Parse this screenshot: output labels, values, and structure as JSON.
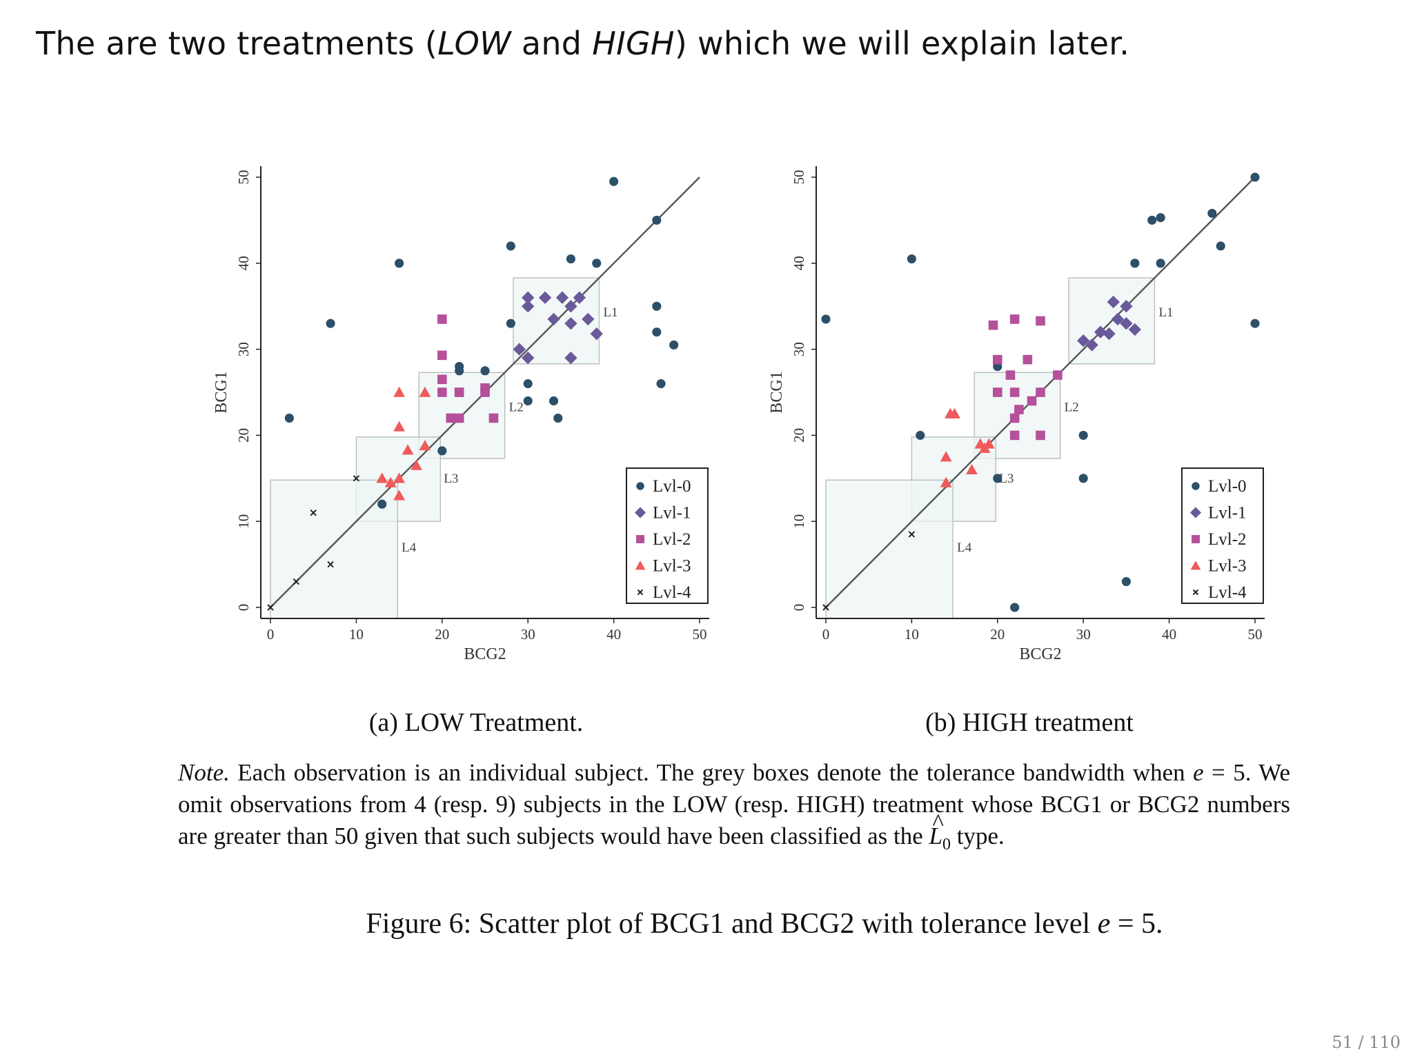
{
  "slide": {
    "header_parts": [
      "The are two treatments (",
      "LOW",
      " and ",
      "HIGH",
      ") which we will explain later."
    ],
    "page_number": "51 / 110"
  },
  "chart_data": [
    {
      "type": "scatter",
      "panel": "low",
      "caption": "(a) LOW Treatment.",
      "xlabel": "BCG2",
      "ylabel": "BCG1",
      "xlim": [
        0,
        50
      ],
      "ylim": [
        0,
        50
      ],
      "xticks": [
        0,
        10,
        20,
        30,
        40,
        50
      ],
      "yticks": [
        0,
        10,
        20,
        30,
        40,
        50
      ],
      "legend_position": "bottom-right",
      "diagonal": [
        [
          0,
          0
        ],
        [
          50,
          50
        ]
      ],
      "tolerance_boxes": [
        {
          "label": "L1",
          "x": [
            28.3,
            38.3
          ],
          "y": [
            28.3,
            38.3
          ]
        },
        {
          "label": "L2",
          "x": [
            17.3,
            27.3
          ],
          "y": [
            17.3,
            27.3
          ]
        },
        {
          "label": "L3",
          "x": [
            10.0,
            19.8
          ],
          "y": [
            10.0,
            19.8
          ]
        },
        {
          "label": "L4",
          "x": [
            0,
            14.8
          ],
          "y": [
            0,
            14.8
          ]
        }
      ],
      "series": [
        {
          "name": "Lvl-0",
          "marker": "circle",
          "color": "#2d4f68",
          "x": [
            2.2,
            7,
            15,
            13,
            20,
            22,
            22,
            25,
            28,
            28,
            30,
            30,
            33,
            33.5,
            35,
            38,
            40,
            45,
            45,
            45,
            45.5,
            47
          ],
          "y": [
            22,
            33,
            40,
            12,
            18.2,
            27.5,
            28,
            27.5,
            42,
            33,
            26,
            24,
            24,
            22,
            40.5,
            40,
            49.5,
            45,
            35,
            32,
            26,
            30.5
          ]
        },
        {
          "name": "Lvl-1",
          "marker": "diamond",
          "color": "#6a5a9a",
          "x": [
            30,
            30,
            32,
            33,
            35,
            35,
            36,
            37,
            38,
            29,
            30,
            35,
            34
          ],
          "y": [
            36,
            35,
            36,
            33.5,
            35,
            33,
            36,
            33.5,
            31.8,
            30,
            29,
            29,
            36
          ]
        },
        {
          "name": "Lvl-2",
          "marker": "square",
          "color": "#b5509a",
          "x": [
            20,
            20,
            20,
            20,
            21,
            22,
            22,
            22,
            25,
            25,
            26
          ],
          "y": [
            33.5,
            29.3,
            26.5,
            25,
            22,
            25,
            25,
            22,
            25,
            25.5,
            22
          ]
        },
        {
          "name": "Lvl-3",
          "marker": "triangle",
          "color": "#f05a5a",
          "x": [
            15,
            18,
            15,
            16,
            18,
            17,
            13,
            14,
            15,
            15
          ],
          "y": [
            25,
            25,
            21,
            18.3,
            18.8,
            16.5,
            15,
            14.5,
            15,
            13
          ]
        },
        {
          "name": "Lvl-4",
          "marker": "x",
          "color": "#222222",
          "x": [
            0,
            3,
            5,
            7,
            10
          ],
          "y": [
            0,
            3,
            11,
            5,
            15
          ]
        }
      ]
    },
    {
      "type": "scatter",
      "panel": "high",
      "caption": "(b) HIGH treatment",
      "xlabel": "BCG2",
      "ylabel": "BCG1",
      "xlim": [
        0,
        50
      ],
      "ylim": [
        0,
        50
      ],
      "xticks": [
        0,
        10,
        20,
        30,
        40,
        50
      ],
      "yticks": [
        0,
        10,
        20,
        30,
        40,
        50
      ],
      "legend_position": "bottom-right",
      "diagonal": [
        [
          0,
          0
        ],
        [
          50,
          50
        ]
      ],
      "tolerance_boxes": [
        {
          "label": "L1",
          "x": [
            28.3,
            38.3
          ],
          "y": [
            28.3,
            38.3
          ]
        },
        {
          "label": "L2",
          "x": [
            17.3,
            27.3
          ],
          "y": [
            17.3,
            27.3
          ]
        },
        {
          "label": "L3",
          "x": [
            10.0,
            19.8
          ],
          "y": [
            10.0,
            19.8
          ]
        },
        {
          "label": "L4",
          "x": [
            0,
            14.8
          ],
          "y": [
            0,
            14.8
          ]
        }
      ],
      "series": [
        {
          "name": "Lvl-0",
          "marker": "circle",
          "color": "#2d4f68",
          "x": [
            0,
            10,
            11,
            20,
            20,
            22,
            30,
            30,
            35,
            36,
            38,
            39,
            39,
            45,
            46,
            50,
            50
          ],
          "y": [
            33.5,
            40.5,
            20,
            28,
            15,
            0,
            20,
            15,
            3,
            40,
            45,
            45.3,
            40,
            45.8,
            42,
            50,
            33
          ]
        },
        {
          "name": "Lvl-1",
          "marker": "diamond",
          "color": "#6a5a9a",
          "x": [
            30,
            31,
            32,
            33,
            33.5,
            34,
            35,
            35,
            36
          ],
          "y": [
            31,
            30.5,
            32,
            31.8,
            35.5,
            33.5,
            35,
            33,
            32.3
          ]
        },
        {
          "name": "Lvl-2",
          "marker": "square",
          "color": "#b5509a",
          "x": [
            19.5,
            20,
            20,
            21.5,
            22,
            22,
            22,
            23.5,
            24,
            25,
            25,
            25,
            27,
            22,
            22.5
          ],
          "y": [
            32.8,
            28.8,
            25,
            27,
            25,
            22,
            33.5,
            28.8,
            24,
            33.3,
            25,
            20,
            27,
            20,
            23
          ]
        },
        {
          "name": "Lvl-3",
          "marker": "triangle",
          "color": "#f05a5a",
          "x": [
            14.5,
            15,
            14,
            14,
            17,
            18,
            18.5,
            19
          ],
          "y": [
            22.5,
            22.5,
            17.5,
            14.5,
            16,
            19,
            18.5,
            19
          ]
        },
        {
          "name": "Lvl-4",
          "marker": "x",
          "color": "#222222",
          "x": [
            0,
            10
          ],
          "y": [
            0,
            8.5
          ]
        }
      ]
    }
  ],
  "note": {
    "label": "Note.",
    "text_1": " Each observation is an individual subject. The grey boxes denote the tolerance bandwidth when ",
    "e_symbol": "e",
    "text_2": " = 5. We omit observations from 4 (resp. 9) subjects in the LOW (resp. HIGH) treatment whose BCG1 or BCG2 numbers are greater than 50 given that such subjects would have been classified as the ",
    "l0_base": "L",
    "l0_hat": "^",
    "l0_sub": "0",
    "text_3": " type."
  },
  "figure_caption": {
    "text_1": "Figure 6: Scatter plot of BCG1 and BCG2 with tolerance level ",
    "e_symbol": "e",
    "text_2": " = 5."
  }
}
